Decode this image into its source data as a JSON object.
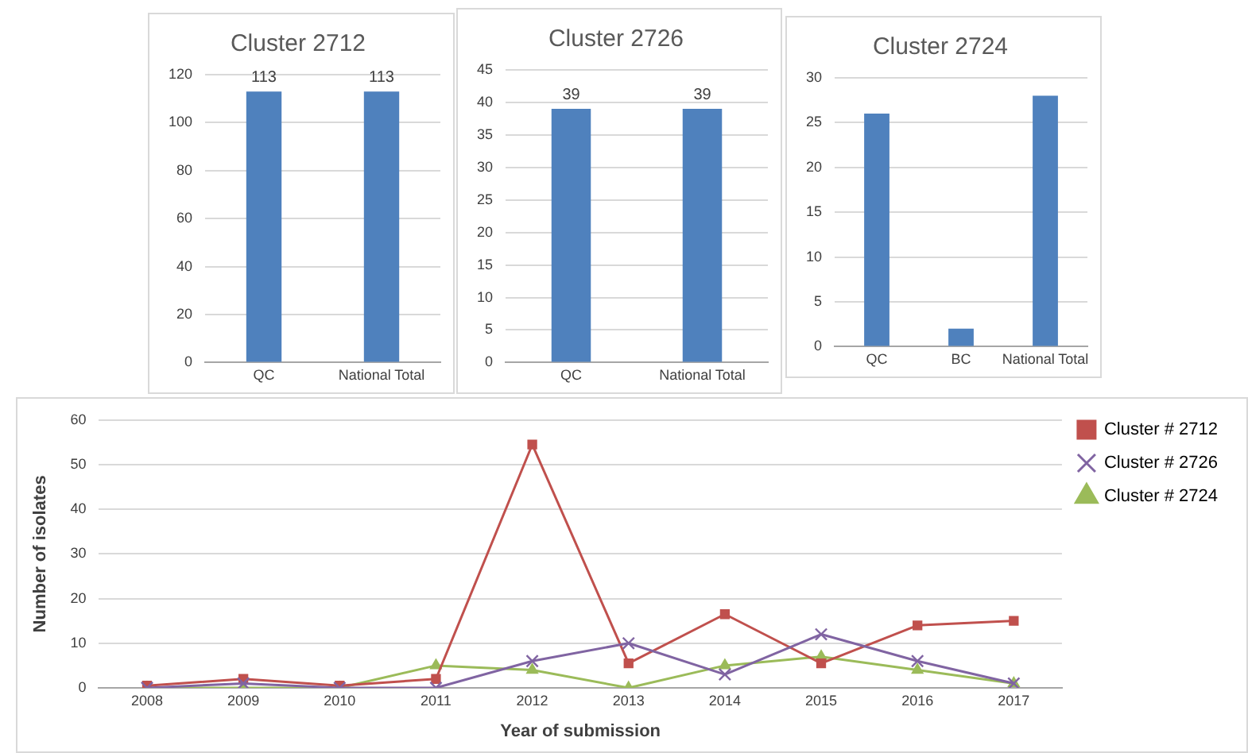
{
  "chart_data": [
    {
      "type": "bar",
      "title": "Cluster 2712",
      "categories": [
        "QC",
        "National Total"
      ],
      "values": [
        113,
        113
      ],
      "color": "#4f81bd",
      "ylim": [
        0,
        120
      ],
      "yticks": [
        0,
        20,
        40,
        60,
        80,
        100,
        120
      ],
      "grid": "y",
      "data_labels": true
    },
    {
      "type": "bar",
      "title": "Cluster 2726",
      "categories": [
        "QC",
        "National Total"
      ],
      "values": [
        39,
        39
      ],
      "color": "#4f81bd",
      "ylim": [
        0,
        45
      ],
      "yticks": [
        0,
        5,
        10,
        15,
        20,
        25,
        30,
        35,
        40,
        45
      ],
      "grid": "y",
      "data_labels": true
    },
    {
      "type": "bar",
      "title": "Cluster 2724",
      "categories": [
        "QC",
        "BC",
        "National Total"
      ],
      "values": [
        26,
        2,
        28
      ],
      "color": "#4f81bd",
      "ylim": [
        0,
        30
      ],
      "yticks": [
        0,
        5,
        10,
        15,
        20,
        25,
        30
      ],
      "grid": "y"
    },
    {
      "type": "line",
      "xlabel": "Year of submission",
      "ylabel": "Number of isolates",
      "categories": [
        "2008",
        "2009",
        "2010",
        "2011",
        "2012",
        "2013",
        "2014",
        "2015",
        "2016",
        "2017"
      ],
      "ylim": [
        0,
        60
      ],
      "yticks": [
        0,
        10,
        20,
        30,
        40,
        50,
        60
      ],
      "grid": "y",
      "legend": "top right",
      "series": [
        {
          "name": "Cluster # 2712",
          "color": "#c0504d",
          "marker": "square",
          "values": [
            0.5,
            2,
            0.5,
            2,
            54.5,
            5.5,
            16.5,
            5.5,
            14,
            15
          ]
        },
        {
          "name": "Cluster # 2726",
          "color": "#8064a2",
          "marker": "cross",
          "values": [
            0,
            1,
            0,
            0,
            6,
            10,
            3,
            12,
            6,
            1
          ]
        },
        {
          "name": "Cluster # 2724",
          "color": "#9bbb59",
          "marker": "triangle",
          "values": [
            0,
            0,
            0,
            5,
            4,
            0,
            5,
            7,
            4,
            1
          ]
        }
      ]
    }
  ]
}
